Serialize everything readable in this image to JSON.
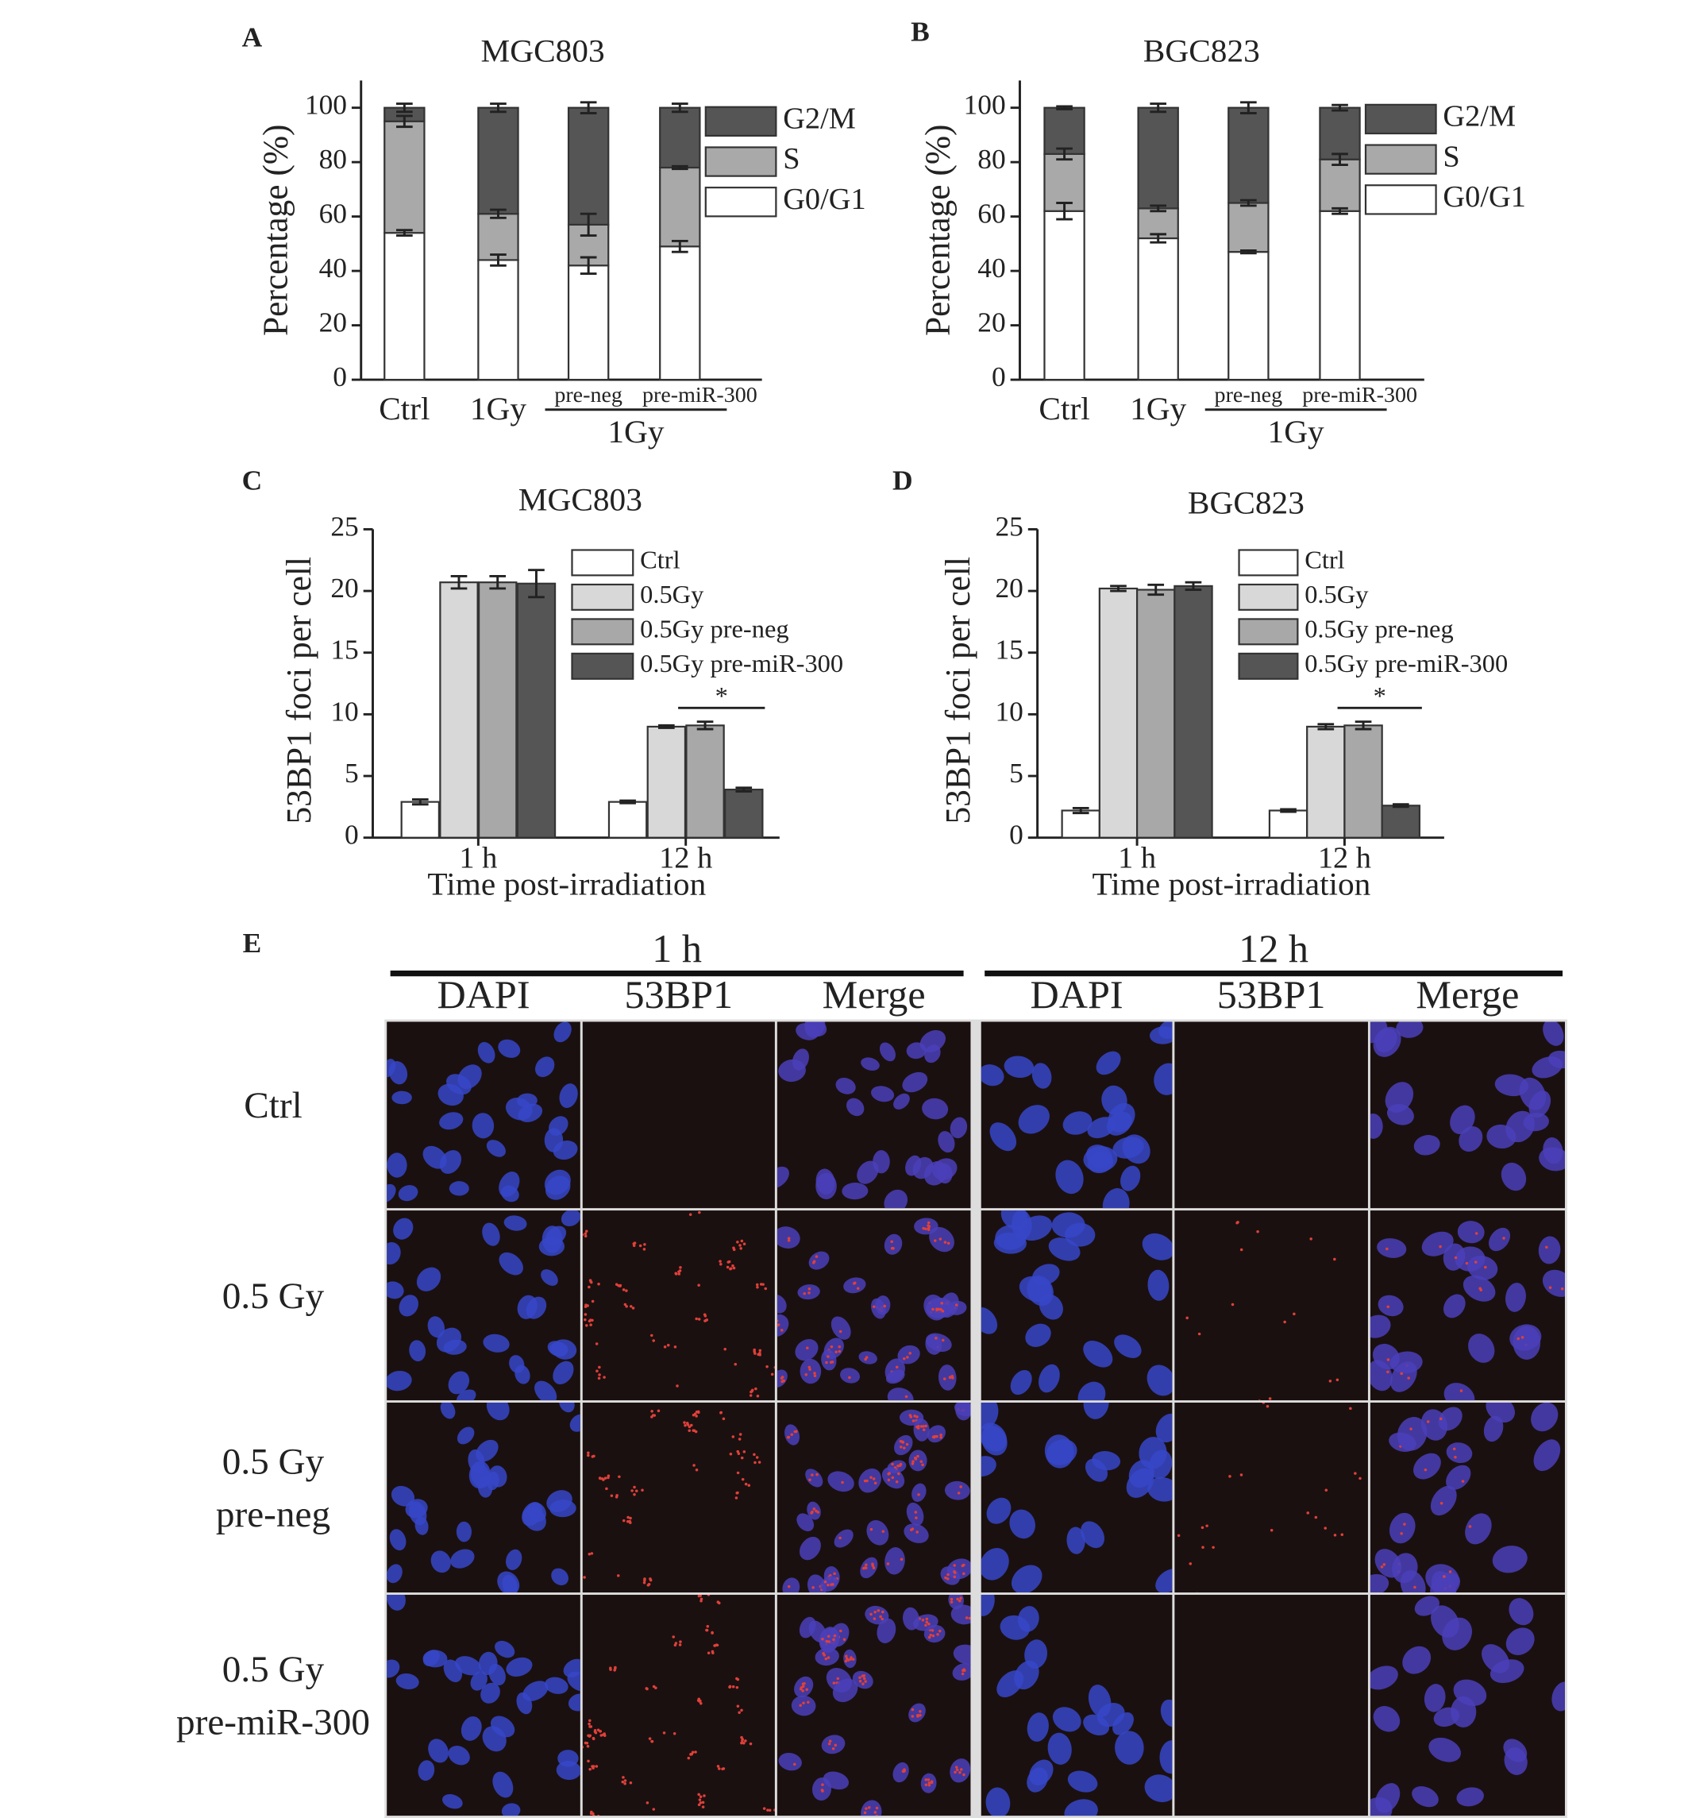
{
  "chart_data": [
    {
      "type": "stacked_bar",
      "panel": "A",
      "title": "MGC803",
      "ylabel": "Percentage (%)",
      "categories": [
        "Ctrl",
        "1Gy",
        "pre-neg",
        "pre-miR-300"
      ],
      "group": {
        "label": "1Gy",
        "members": [
          "pre-neg",
          "pre-miR-300"
        ]
      },
      "series": [
        {
          "name": "G0/G1",
          "color": "#ffffff",
          "values": [
            54,
            44,
            42,
            49
          ],
          "errors": [
            1,
            2,
            3,
            2
          ]
        },
        {
          "name": "S",
          "color": "#a9a9a9",
          "values": [
            41,
            17,
            15,
            29
          ],
          "errors": [
            2,
            1.5,
            4,
            0.5
          ]
        },
        {
          "name": "G2/M",
          "color": "#555555",
          "values": [
            5,
            39,
            43,
            22
          ],
          "errors": [
            1.5,
            1.5,
            2,
            1.5
          ]
        }
      ],
      "ylim": [
        0,
        110
      ],
      "yticks": [
        0,
        20,
        40,
        60,
        80,
        100
      ]
    },
    {
      "type": "stacked_bar",
      "panel": "B",
      "title": "BGC823",
      "ylabel": "Percentage (%)",
      "categories": [
        "Ctrl",
        "1Gy",
        "pre-neg",
        "pre-miR-300"
      ],
      "group": {
        "label": "1Gy",
        "members": [
          "pre-neg",
          "pre-miR-300"
        ]
      },
      "series": [
        {
          "name": "G0/G1",
          "color": "#ffffff",
          "values": [
            62,
            52,
            47,
            62
          ],
          "errors": [
            3,
            1.5,
            0.5,
            1
          ]
        },
        {
          "name": "S",
          "color": "#a9a9a9",
          "values": [
            21,
            11,
            18,
            19
          ],
          "errors": [
            2,
            1,
            1,
            2
          ]
        },
        {
          "name": "G2/M",
          "color": "#555555",
          "values": [
            17,
            37,
            35,
            19
          ],
          "errors": [
            0.5,
            1.5,
            2,
            1
          ]
        }
      ],
      "ylim": [
        0,
        110
      ],
      "yticks": [
        0,
        20,
        40,
        60,
        80,
        100
      ]
    },
    {
      "type": "grouped_bar",
      "panel": "C",
      "title": "MGC803",
      "ylabel": "53BP1 foci per cell",
      "xlabel": "Time post-irradiation",
      "categories": [
        "1 h",
        "12 h"
      ],
      "significance": "*",
      "series": [
        {
          "name": "Ctrl",
          "color": "#ffffff",
          "values": [
            2.9,
            2.9
          ],
          "errors": [
            0.2,
            0.1
          ]
        },
        {
          "name": "0.5Gy",
          "color": "#d8d8d8",
          "values": [
            20.7,
            9.0
          ],
          "errors": [
            0.5,
            0.1
          ]
        },
        {
          "name": "0.5Gy pre-neg",
          "color": "#a8a8a8",
          "values": [
            20.7,
            9.1
          ],
          "errors": [
            0.5,
            0.3
          ]
        },
        {
          "name": "0.5Gy  pre-miR-300",
          "color": "#555555",
          "values": [
            20.6,
            3.9
          ],
          "errors": [
            1.1,
            0.15
          ]
        }
      ],
      "ylim": [
        0,
        25
      ],
      "yticks": [
        0,
        5,
        10,
        15,
        20,
        25
      ]
    },
    {
      "type": "grouped_bar",
      "panel": "D",
      "title": "BGC823",
      "ylabel": "53BP1 foci per cell",
      "xlabel": "Time post-irradiation",
      "categories": [
        "1 h",
        "12 h"
      ],
      "significance": "*",
      "series": [
        {
          "name": "Ctrl",
          "color": "#ffffff",
          "values": [
            2.2,
            2.2
          ],
          "errors": [
            0.2,
            0.1
          ]
        },
        {
          "name": "0.5Gy",
          "color": "#d8d8d8",
          "values": [
            20.2,
            9.0
          ],
          "errors": [
            0.2,
            0.2
          ]
        },
        {
          "name": "0.5Gy pre-neg",
          "color": "#a8a8a8",
          "values": [
            20.1,
            9.1
          ],
          "errors": [
            0.4,
            0.3
          ]
        },
        {
          "name": "0.5Gy pre-miR-300",
          "color": "#555555",
          "values": [
            20.4,
            2.6
          ],
          "errors": [
            0.3,
            0.1
          ]
        }
      ],
      "ylim": [
        0,
        25
      ],
      "yticks": [
        0,
        5,
        10,
        15,
        20,
        25
      ]
    }
  ],
  "panel_e": {
    "letter": "E",
    "time_points": [
      {
        "label": "1 h",
        "channels": [
          "DAPI",
          "53BP1",
          "Merge"
        ]
      },
      {
        "label": "12 h",
        "channels": [
          "DAPI",
          "53BP1",
          "Merge"
        ]
      }
    ],
    "rows": [
      [
        "Ctrl"
      ],
      [
        "0.5 Gy"
      ],
      [
        "0.5 Gy",
        "pre-neg"
      ],
      [
        "0.5 Gy",
        "pre-miR-300"
      ]
    ]
  }
}
